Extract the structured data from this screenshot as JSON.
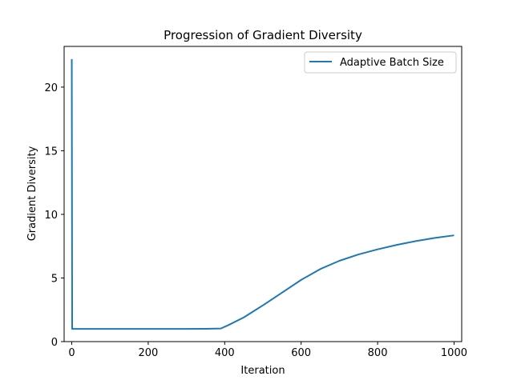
{
  "chart_data": {
    "type": "line",
    "title": "Progression of Gradient Diversity",
    "xlabel": "Iteration",
    "ylabel": "Gradient Diversity",
    "xlim": [
      -20,
      1020
    ],
    "ylim": [
      0,
      23.2
    ],
    "xticks": [
      0,
      200,
      400,
      600,
      800,
      1000
    ],
    "yticks": [
      0,
      5,
      10,
      15,
      20
    ],
    "grid": false,
    "legend_position": "upper right",
    "series": [
      {
        "name": "Adaptive Batch Size",
        "color": "#1f77b4",
        "x": [
          0,
          1,
          2,
          50,
          100,
          200,
          300,
          350,
          390,
          410,
          450,
          500,
          550,
          600,
          650,
          700,
          750,
          800,
          850,
          900,
          950,
          1000
        ],
        "y": [
          22.2,
          1.0,
          1.0,
          1.0,
          1.0,
          1.0,
          1.0,
          1.01,
          1.03,
          1.3,
          1.9,
          2.85,
          3.85,
          4.85,
          5.7,
          6.35,
          6.85,
          7.25,
          7.6,
          7.9,
          8.15,
          8.35
        ]
      }
    ]
  }
}
